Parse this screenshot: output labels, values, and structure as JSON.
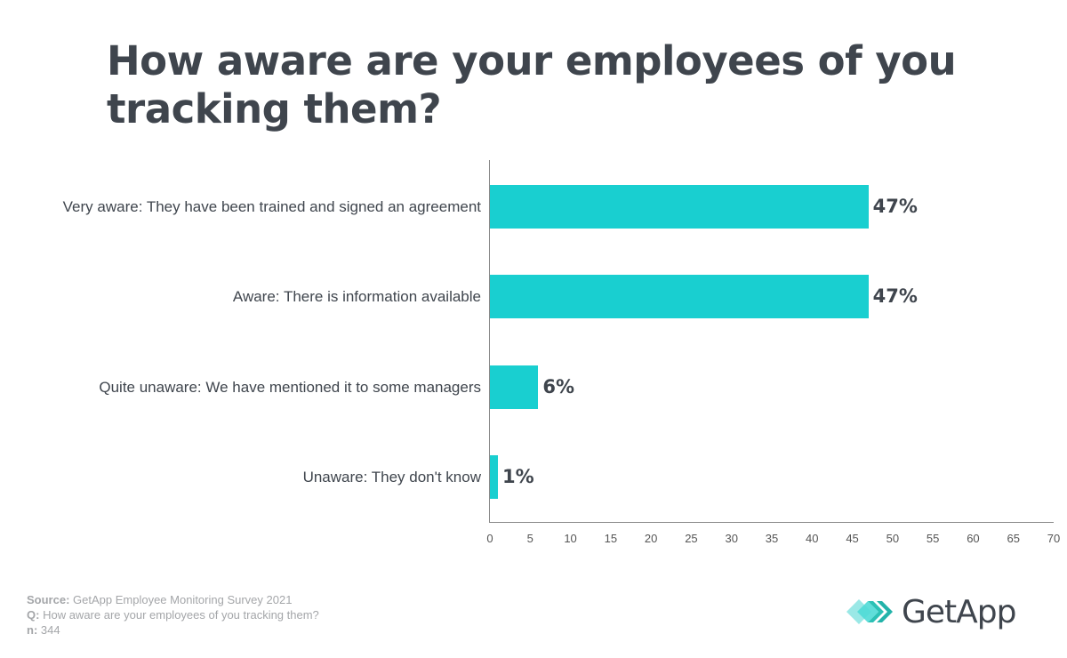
{
  "title": "How aware are your employees of you tracking them?",
  "colors": {
    "bar": "#19cfd0",
    "text": "#3f454d",
    "footer": "#a4a6a9"
  },
  "chart_data": {
    "type": "bar",
    "orientation": "horizontal",
    "title": "How aware are your employees of you tracking them?",
    "categories": [
      "Very aware: They have been trained and signed an agreement",
      "Aware: There is information available",
      "Quite unaware: We have mentioned it to some managers",
      "Unaware: They don't know"
    ],
    "values": [
      47,
      47,
      6,
      1
    ],
    "value_labels": [
      "47%",
      "47%",
      "6%",
      "1%"
    ],
    "xlabel": "",
    "ylabel": "",
    "xlim": [
      0,
      70
    ],
    "xticks": [
      0,
      5,
      10,
      15,
      20,
      25,
      30,
      35,
      40,
      45,
      50,
      55,
      60,
      65,
      70
    ],
    "grid": false,
    "legend": null
  },
  "footer": {
    "source_label": "Source:",
    "source": "GetApp Employee Monitoring Survey 2021",
    "q_label": "Q:",
    "q": "How aware are your employees of you tracking them?",
    "n_label": "n:",
    "n": "344"
  },
  "logo": {
    "text": "GetApp",
    "icon": "getapp-chevrons-icon"
  }
}
